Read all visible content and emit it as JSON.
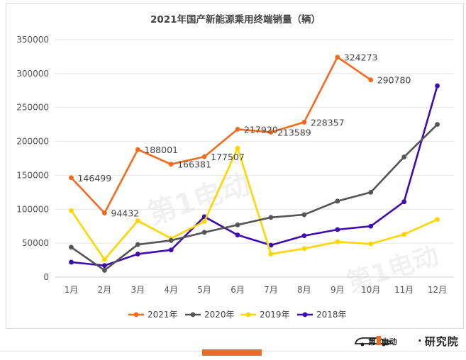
{
  "chart_data": {
    "type": "line",
    "title": "2021年国产新能源乘用终端销量（辆）",
    "xlabel": "",
    "ylabel": "",
    "categories": [
      "1月",
      "2月",
      "3月",
      "4月",
      "5月",
      "6月",
      "7月",
      "8月",
      "9月",
      "10月",
      "11月",
      "12月"
    ],
    "ylim": [
      0,
      350000
    ],
    "yticks": [
      0,
      50000,
      100000,
      150000,
      200000,
      250000,
      300000,
      350000
    ],
    "grid": "horizontal",
    "legend_position": "bottom",
    "series": [
      {
        "name": "2021年",
        "color": "#f26b1d",
        "values": [
          146499,
          94432,
          188001,
          166381,
          177507,
          217920,
          213589,
          228357,
          324273,
          290780,
          null,
          null
        ],
        "labels": [
          "146499",
          "94432",
          "188001",
          "166381",
          "177507",
          "217920",
          "213589",
          "228357",
          "324273",
          "290780",
          "",
          ""
        ]
      },
      {
        "name": "2020年",
        "color": "#555555",
        "values": [
          44000,
          10000,
          48000,
          54000,
          66000,
          77000,
          88000,
          92000,
          112000,
          125000,
          177000,
          225000
        ],
        "labels": []
      },
      {
        "name": "2019年",
        "color": "#ffd500",
        "values": [
          98000,
          26000,
          83000,
          57000,
          82000,
          190000,
          34000,
          42000,
          52000,
          49000,
          63000,
          85000
        ],
        "labels": []
      },
      {
        "name": "2018年",
        "color": "#3d0bb0",
        "values": [
          22000,
          17000,
          34000,
          40000,
          89000,
          62000,
          47000,
          61000,
          70000,
          75000,
          111000,
          282000
        ],
        "labels": []
      }
    ]
  },
  "watermark": {
    "text": "第1电动"
  },
  "footer": {
    "logo_name": "第1电动",
    "separator": "·",
    "suffix": "研究院",
    "accent_color": "#f26b1d"
  }
}
